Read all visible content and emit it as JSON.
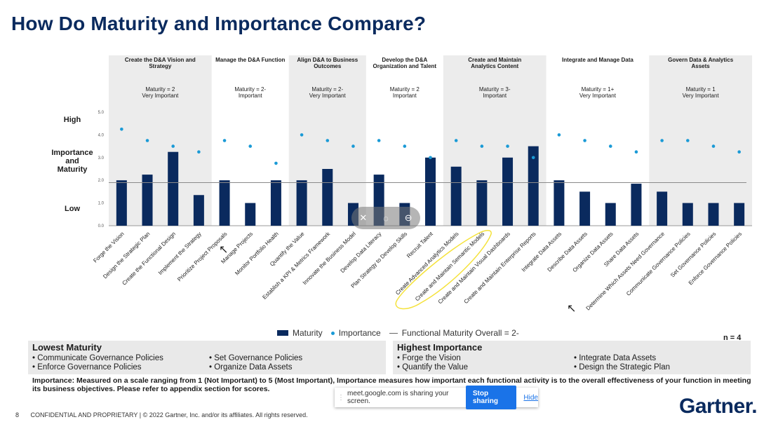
{
  "title": "How Do Maturity and Importance Compare?",
  "colors": {
    "maturity": "#0a2a5e",
    "importance": "#1a9ad6",
    "overall_line": "#8a8a8a",
    "shade": "#ececec",
    "highlight": "#f5e23a"
  },
  "y_axis_text": {
    "high": "High",
    "mid": "Importance\nand\nMaturity",
    "low": "Low"
  },
  "chart_data": {
    "type": "bar",
    "ylim": [
      0,
      5
    ],
    "yticks": [
      "0.0",
      "1.0",
      "2.0",
      "3.0",
      "4.0",
      "5.0"
    ],
    "overall_maturity": 1.9,
    "groups": [
      {
        "name": "Create the D&A Vision and Strategy",
        "summary": "Maturity = 2\nVery Important",
        "shaded": true,
        "start": 0,
        "count": 4
      },
      {
        "name": "Manage the D&A Function",
        "summary": "Maturity = 2-\nImportant",
        "shaded": false,
        "start": 4,
        "count": 3
      },
      {
        "name": "Align D&A to Business Outcomes",
        "summary": "Maturity = 2-\nVery Important",
        "shaded": true,
        "start": 7,
        "count": 3
      },
      {
        "name": "Develop the D&A Organization and Talent",
        "summary": "Maturity = 2\nImportant",
        "shaded": false,
        "start": 10,
        "count": 3
      },
      {
        "name": "Create and Maintain Analytics Content",
        "summary": "Maturity = 3-\nImportant",
        "shaded": true,
        "start": 13,
        "count": 4
      },
      {
        "name": "Integrate and Manage Data",
        "summary": "Maturity = 1+\nVery Important",
        "shaded": false,
        "start": 17,
        "count": 4
      },
      {
        "name": "Govern Data & Analytics Assets",
        "summary": "Maturity = 1\nVery Important",
        "shaded": true,
        "start": 21,
        "count": 4
      }
    ],
    "categories": [
      "Forge the Vision",
      "Design the Strategic Plan",
      "Create the Functional Design",
      "Implement the Strategy",
      "Prioritize Project Proposals",
      "Manage Projects",
      "Monitor Portfolio Health",
      "Quantify the Value",
      "Establish a KPI & Metrics Framework",
      "Innovate the Business Model",
      "Develop Data Literacy",
      "Plan Strategy to Develop Skills",
      "Recruit Talent",
      "Create Advanced Analytics Models",
      "Create and Maintain Semantic Models",
      "Create and Maintain Visual Dashboards",
      "Create and Maintain Enterprise Reports",
      "Integrate Data Assets",
      "Describe Data Assets",
      "Organize Data Assets",
      "Share Data Assets",
      "Determine Which Assets Need Governance",
      "Communicate Governance Policies",
      "Set Governance Policies",
      "Enforce Governance Policies"
    ],
    "series": [
      {
        "name": "Maturity",
        "values": [
          2.0,
          2.25,
          3.25,
          1.35,
          2.0,
          1.0,
          2.0,
          2.0,
          2.5,
          1.0,
          2.25,
          1.0,
          3.0,
          2.6,
          2.0,
          3.0,
          3.5,
          2.0,
          1.5,
          1.0,
          1.85,
          1.5,
          1.0,
          1.0,
          1.0
        ]
      },
      {
        "name": "Importance",
        "values": [
          4.25,
          3.75,
          3.5,
          3.25,
          3.75,
          3.5,
          2.75,
          4.0,
          3.75,
          3.5,
          3.75,
          3.5,
          3.0,
          3.75,
          3.5,
          3.5,
          3.0,
          4.0,
          3.75,
          3.5,
          3.25,
          3.75,
          3.75,
          3.5,
          3.25
        ]
      }
    ],
    "legend": [
      "Maturity",
      "Importance",
      "Functional Maturity Overall = 2-"
    ]
  },
  "n_label": "n = 4",
  "lowest": {
    "title": "Lowest Maturity",
    "items": [
      "Communicate Governance Policies",
      "Set Governance Policies",
      "Enforce Governance Policies",
      "Organize Data Assets"
    ]
  },
  "highest": {
    "title": "Highest Importance",
    "items": [
      "Forge the Vision",
      "Integrate Data Assets",
      "Quantify the Value",
      "Design the Strategic Plan"
    ]
  },
  "footnote": "Importance: Measured on a scale ranging from 1 (Not Important) to 5 (Most Important), Importance measures how important each functional activity is to the overall effectiveness of your function in meeting its business objectives. Please refer to appendix section for scores.",
  "share": {
    "text": "meet.google.com is sharing your screen.",
    "stop": "Stop sharing",
    "hide": "Hide"
  },
  "footer": {
    "page": "8",
    "text": "CONFIDENTIAL AND PROPRIETARY | © 2022 Gartner, Inc. and/or its affiliates. All rights reserved."
  },
  "logo": "Gartner"
}
